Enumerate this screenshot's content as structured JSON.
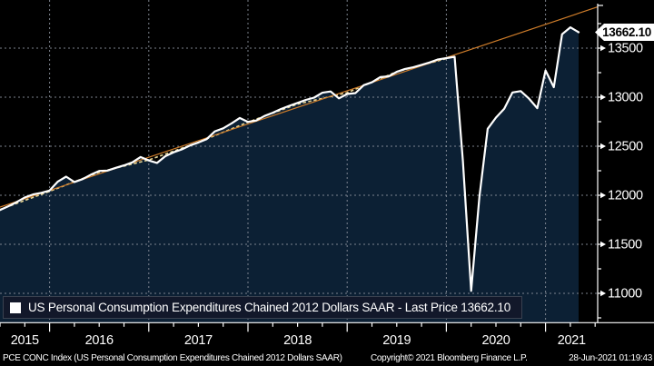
{
  "legend": {
    "label": "US Personal Consumption Expenditures Chained 2012 Dollars SAAR - Last Price 13662.10"
  },
  "footer": {
    "left": "PCE CONC Index (US Personal Consumption Expenditures Chained 2012 Dollars SAAR)",
    "center": "Copyright© 2021 Bloomberg Finance L.P.",
    "right": "28-Jun-2021 01:19:43"
  },
  "colors": {
    "background": "#000000",
    "area_fill": "#0c2034",
    "price_line": "#ffffff",
    "trend_dashed": "#e8d796",
    "regression": "#cf7d2a",
    "gridline": "#8a919c",
    "axis": "#ffffff",
    "legend_bg": "#12182a",
    "flag_bg": "#ffffff",
    "flag_text": "#000000"
  },
  "chart_data": {
    "type": "area",
    "title": "US Personal Consumption Expenditures Chained 2012 Dollars SAAR",
    "ticker": "PCE CONC Index",
    "last_price": 13662.1,
    "last_price_label": "13662.10",
    "series": [
      {
        "name": "US Personal Consumption Expenditures Chained 2012 Dollars SAAR",
        "frequency": "monthly",
        "start_month": "2015-07",
        "end_month": "2021-05",
        "values": [
          11850,
          11888,
          11930,
          11978,
          12008,
          12025,
          12048,
          12140,
          12190,
          12135,
          12165,
          12210,
          12248,
          12252,
          12280,
          12305,
          12335,
          12390,
          12355,
          12330,
          12398,
          12438,
          12468,
          12508,
          12538,
          12572,
          12652,
          12682,
          12732,
          12788,
          12748,
          12762,
          12808,
          12842,
          12880,
          12912,
          12942,
          12972,
          12995,
          13045,
          13058,
          12988,
          13032,
          13042,
          13122,
          13152,
          13205,
          13212,
          13258,
          13288,
          13305,
          13330,
          13355,
          13385,
          13398,
          13412,
          12350,
          11025,
          11985,
          12678,
          12792,
          12882,
          13048,
          13062,
          12985,
          12888,
          13272,
          13102,
          13642,
          13712,
          13662.1
        ]
      }
    ],
    "trend_lines": [
      {
        "name": "pre-covid-trend",
        "style": "dashed",
        "color": "#e8d796",
        "points": [
          [
            "2015-07",
            11855
          ],
          [
            "2016-01",
            12040
          ],
          [
            "2016-07",
            12235
          ],
          [
            "2017-01",
            12360
          ],
          [
            "2017-07",
            12540
          ],
          [
            "2018-01",
            12745
          ],
          [
            "2018-07",
            12930
          ],
          [
            "2019-01",
            13045
          ],
          [
            "2019-07",
            13260
          ],
          [
            "2020-02",
            13415
          ]
        ]
      },
      {
        "name": "linear-regression",
        "style": "solid",
        "color": "#cf7d2a",
        "spans": "full-width",
        "start_value": 11880,
        "end_value": 13920
      }
    ],
    "y_axis": {
      "side": "right",
      "major_ticks": [
        11000,
        11500,
        12000,
        12500,
        13000,
        13500
      ],
      "major_tick_labels": [
        "11000",
        "11500",
        "12000",
        "12500",
        "13000",
        "13500"
      ],
      "minor_step": 250,
      "minor_range": [
        10750,
        13750
      ],
      "visible_range": [
        10700,
        13950
      ]
    },
    "x_axis": {
      "year_labels": [
        "2015",
        "2016",
        "2017",
        "2018",
        "2019",
        "2020",
        "2021"
      ],
      "minor_ticks": "quarterly",
      "range_months": [
        "2015-07",
        "2021-06"
      ]
    },
    "grid": {
      "horizontal": true,
      "vertical": true,
      "style": "dashed"
    }
  }
}
